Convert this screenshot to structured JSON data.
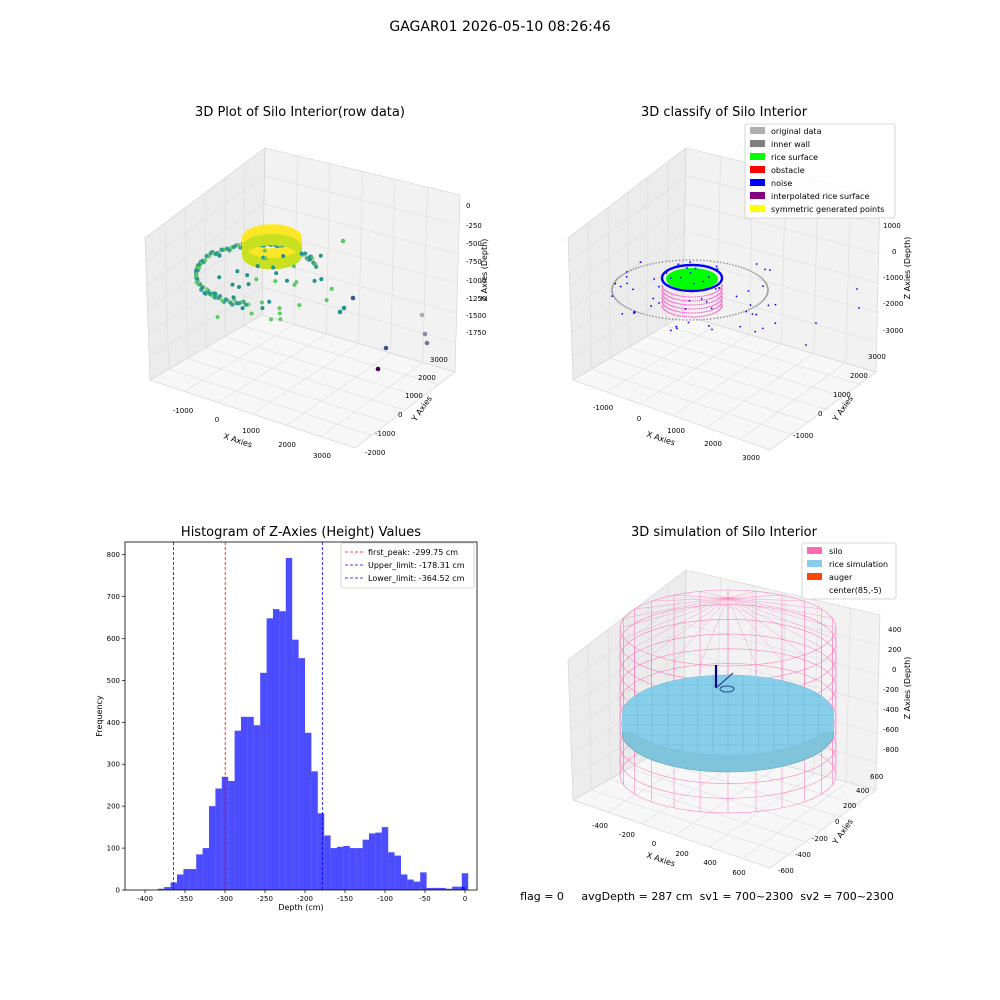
{
  "figure": {
    "suptitle": "GAGAR01 2026-05-10 08:26:46",
    "status_line": "flag = 0     avgDepth = 287 cm  sv1 = 700~2300  sv2 = 700~2300"
  },
  "chart_data": [
    {
      "type": "scatter3d",
      "title": "3D Plot of Silo Interior(row data)",
      "xlabel": "X Axies",
      "ylabel": "Y Axies",
      "zlabel": "Z Axies (Depth)",
      "x_ticks": [
        "-1000",
        "0",
        "1000",
        "2000",
        "3000"
      ],
      "y_ticks": [
        "-2000",
        "-1000",
        "0",
        "1000",
        "2000",
        "3000"
      ],
      "z_ticks": [
        "0",
        "-250",
        "-500",
        "-750",
        "-1000",
        "-1250",
        "-1500",
        "-1750"
      ],
      "colormap": [
        "#440154",
        "#3b528b",
        "#21918c",
        "#5ec962",
        "#fde725"
      ]
    },
    {
      "type": "scatter3d",
      "title": "3D classify of Silo Interior",
      "xlabel": "X Axies",
      "ylabel": "Y Axies",
      "zlabel": "Z Axies (Depth)",
      "x_ticks": [
        "-1000",
        "0",
        "1000",
        "2000",
        "3000"
      ],
      "y_ticks": [
        "-1000",
        "0",
        "1000",
        "2000",
        "3000"
      ],
      "z_ticks": [
        "1000",
        "0",
        "-1000",
        "-2000",
        "-3000"
      ],
      "legend": [
        {
          "label": "original data",
          "color": "#b0b0b0"
        },
        {
          "label": "inner wall",
          "color": "#808080"
        },
        {
          "label": "rice surface",
          "color": "#00ff00"
        },
        {
          "label": "obstacle",
          "color": "#ff0000"
        },
        {
          "label": "noise",
          "color": "#0000ff"
        },
        {
          "label": "interpolated rice surface",
          "color": "#800080"
        },
        {
          "label": "symmetric generated points",
          "color": "#ffff00"
        }
      ],
      "legend_placement": "top-right"
    },
    {
      "type": "histogram",
      "title": "Histogram of Z-Axies (Height) Values",
      "xlabel": "Depth (cm)",
      "ylabel": "Frequency",
      "bin_width": 8,
      "bins": [
        {
          "start": -392,
          "count": 0
        },
        {
          "start": -384,
          "count": 3
        },
        {
          "start": -376,
          "count": 7
        },
        {
          "start": -368,
          "count": 18
        },
        {
          "start": -360,
          "count": 37
        },
        {
          "start": -352,
          "count": 50
        },
        {
          "start": -344,
          "count": 50
        },
        {
          "start": -336,
          "count": 85
        },
        {
          "start": -328,
          "count": 100
        },
        {
          "start": -320,
          "count": 200
        },
        {
          "start": -312,
          "count": 242
        },
        {
          "start": -304,
          "count": 270
        },
        {
          "start": -296,
          "count": 260
        },
        {
          "start": -288,
          "count": 380
        },
        {
          "start": -280,
          "count": 413
        },
        {
          "start": -272,
          "count": 413
        },
        {
          "start": -264,
          "count": 393
        },
        {
          "start": -256,
          "count": 518
        },
        {
          "start": -248,
          "count": 648
        },
        {
          "start": -240,
          "count": 670
        },
        {
          "start": -232,
          "count": 665
        },
        {
          "start": -224,
          "count": 792
        },
        {
          "start": -216,
          "count": 597
        },
        {
          "start": -208,
          "count": 553
        },
        {
          "start": -200,
          "count": 375
        },
        {
          "start": -192,
          "count": 283
        },
        {
          "start": -184,
          "count": 183
        },
        {
          "start": -176,
          "count": 130
        },
        {
          "start": -168,
          "count": 100
        },
        {
          "start": -160,
          "count": 103
        },
        {
          "start": -152,
          "count": 105
        },
        {
          "start": -144,
          "count": 100
        },
        {
          "start": -136,
          "count": 100
        },
        {
          "start": -128,
          "count": 120
        },
        {
          "start": -120,
          "count": 135
        },
        {
          "start": -112,
          "count": 137
        },
        {
          "start": -104,
          "count": 150
        },
        {
          "start": -96,
          "count": 90
        },
        {
          "start": -88,
          "count": 82
        },
        {
          "start": -80,
          "count": 37
        },
        {
          "start": -72,
          "count": 25
        },
        {
          "start": -64,
          "count": 20
        },
        {
          "start": -56,
          "count": 42
        },
        {
          "start": -48,
          "count": 5
        },
        {
          "start": -40,
          "count": 5
        },
        {
          "start": -32,
          "count": 5
        },
        {
          "start": -24,
          "count": 3
        },
        {
          "start": -16,
          "count": 8
        },
        {
          "start": -8,
          "count": 8
        },
        {
          "start": -4,
          "count": 40
        }
      ],
      "xlim": [
        -425,
        15
      ],
      "ylim": [
        0,
        830
      ],
      "x_ticks": [
        -400,
        -350,
        -300,
        -250,
        -200,
        -150,
        -100,
        -50,
        0
      ],
      "y_ticks": [
        0,
        100,
        200,
        300,
        400,
        500,
        600,
        700,
        800
      ],
      "bar_color": "#0000ff",
      "vlines": [
        {
          "label": "first_peak: -299.75 cm",
          "x": -299.75,
          "color": "#ff0000"
        },
        {
          "label": "Upper_limit: -178.31 cm",
          "x": -178.31,
          "color": "#0000ff"
        },
        {
          "label": "Lower_limit: -364.52 cm",
          "x": -364.52,
          "color": "#0000ff"
        }
      ],
      "legend_placement": "top-right"
    },
    {
      "type": "surface3d",
      "title": "3D simulation of Silo Interior",
      "xlabel": "X Axies",
      "ylabel": "Y Axies",
      "zlabel": "Z Axies (Depth)",
      "x_ticks": [
        "-400",
        "-200",
        "0",
        "200",
        "400",
        "600"
      ],
      "y_ticks": [
        "-600",
        "-400",
        "-200",
        "0",
        "200",
        "400",
        "600"
      ],
      "z_ticks": [
        "400",
        "200",
        "0",
        "-200",
        "-400",
        "-600",
        "-800"
      ],
      "legend": [
        {
          "label": "silo",
          "color": "#ff69b4"
        },
        {
          "label": "rice simulation",
          "color": "#87ceeb"
        },
        {
          "label": "auger",
          "color": "#ff4500"
        },
        {
          "label": "center(85,-5)",
          "color": ""
        }
      ],
      "legend_placement": "top-right"
    }
  ]
}
